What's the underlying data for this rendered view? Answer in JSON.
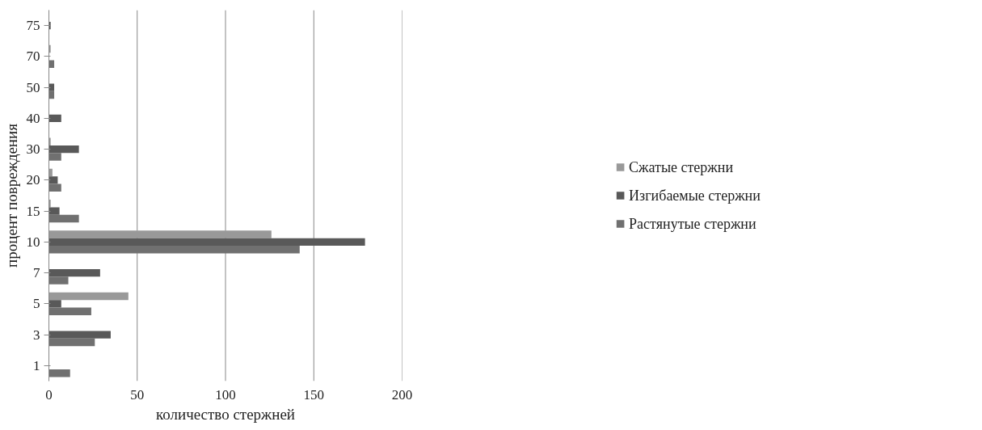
{
  "chart_data": {
    "type": "bar",
    "orientation": "horizontal",
    "xlabel": "количество стержней",
    "ylabel": "процент повреждения",
    "categories": [
      "75",
      "70",
      "50",
      "40",
      "30",
      "20",
      "15",
      "10",
      "7",
      "5",
      "3",
      "1"
    ],
    "series": [
      {
        "name": "Сжатые стержни",
        "color": "#999999",
        "values": [
          0,
          1,
          0,
          0,
          1,
          2,
          1,
          126,
          0,
          45,
          0,
          0
        ]
      },
      {
        "name": "Изгибаемые стержни",
        "color": "#595959",
        "values": [
          1,
          0,
          3,
          7,
          17,
          5,
          6,
          179,
          29,
          7,
          35,
          0
        ]
      },
      {
        "name": "Растянутые стержни",
        "color": "#707070",
        "values": [
          0,
          3,
          3,
          0,
          7,
          7,
          17,
          142,
          11,
          24,
          26,
          12
        ]
      }
    ],
    "xlim": [
      0,
      200
    ],
    "xticks": [
      0,
      50,
      100,
      150,
      200
    ],
    "grid": "x",
    "legend": "right"
  }
}
